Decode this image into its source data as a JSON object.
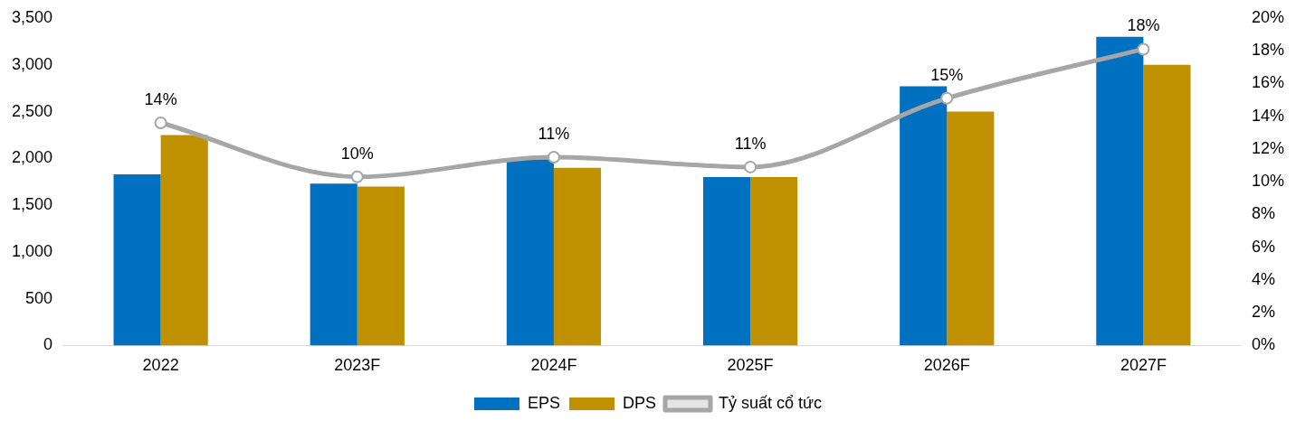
{
  "chart_data": {
    "type": "bar",
    "categories": [
      "2022",
      "2023F",
      "2024F",
      "2025F",
      "2026F",
      "2027F"
    ],
    "series": [
      {
        "name": "EPS",
        "color": "#0070c0",
        "values": [
          1830,
          1730,
          1990,
          1800,
          2770,
          3300
        ]
      },
      {
        "name": "DPS",
        "color": "#bf9000",
        "values": [
          2250,
          1700,
          1900,
          1800,
          2500,
          3000
        ]
      },
      {
        "name": "Tỷ suất cổ tức",
        "type": "line",
        "axis": "y2",
        "color": "#a6a6a6",
        "values": [
          13.6,
          10.3,
          11.5,
          10.9,
          15.1,
          18.1
        ],
        "value_labels": [
          "14%",
          "10%",
          "11%",
          "11%",
          "15%",
          "18%"
        ]
      }
    ],
    "ylim": [
      0,
      3500
    ],
    "yticks": [
      0,
      {
        "value": 500,
        "label": "500"
      },
      {
        "value": 1000,
        "label": "1,000"
      },
      {
        "value": 1500,
        "label": "1,500"
      },
      {
        "value": 2000,
        "label": "2,000"
      },
      {
        "value": 2500,
        "label": "2,500"
      },
      {
        "value": 3000,
        "label": "3,000"
      },
      {
        "value": 3500,
        "label": "3,500"
      }
    ],
    "y2lim": [
      0,
      20
    ],
    "y2ticks": [
      {
        "value": 0,
        "label": "0%"
      },
      {
        "value": 2,
        "label": "2%"
      },
      {
        "value": 4,
        "label": "4%"
      },
      {
        "value": 6,
        "label": "6%"
      },
      {
        "value": 8,
        "label": "8%"
      },
      {
        "value": 10,
        "label": "10%"
      },
      {
        "value": 12,
        "label": "12%"
      },
      {
        "value": 14,
        "label": "14%"
      },
      {
        "value": 16,
        "label": "16%"
      },
      {
        "value": 18,
        "label": "18%"
      },
      {
        "value": 20,
        "label": "20%"
      }
    ],
    "grid": false,
    "legend": "bottom",
    "marker": "circle",
    "line_style": "solid"
  }
}
